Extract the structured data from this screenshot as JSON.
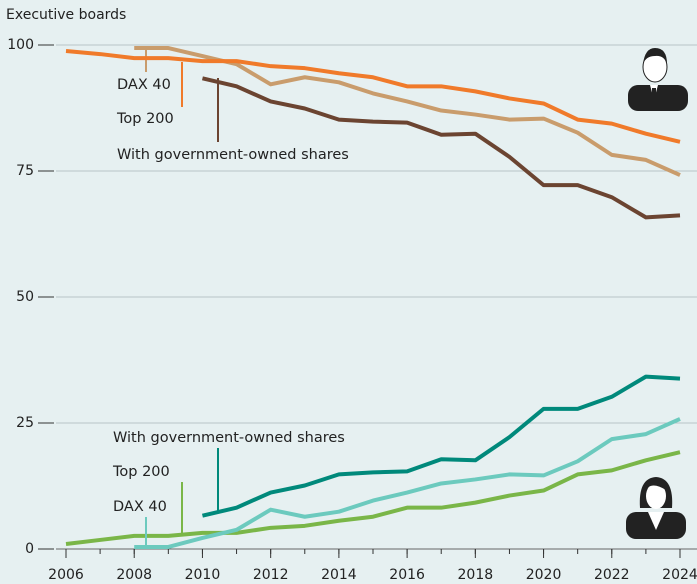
{
  "chart_data": {
    "type": "line",
    "y_label": "Executive boards",
    "x": [
      2006,
      2007,
      2008,
      2009,
      2010,
      2011,
      2012,
      2013,
      2014,
      2015,
      2016,
      2017,
      2018,
      2019,
      2020,
      2021,
      2022,
      2023,
      2024
    ],
    "xlim": [
      2006,
      2024
    ],
    "xticks": [
      2006,
      2008,
      2010,
      2012,
      2014,
      2016,
      2018,
      2020,
      2022,
      2024
    ],
    "ylim": [
      0,
      100
    ],
    "yticks": [
      0,
      25,
      50,
      75,
      100
    ],
    "grid": true,
    "series": [
      {
        "name": "DAX 40",
        "color": "#c99c6c",
        "values": [
          null,
          null,
          99.4,
          99.4,
          97.8,
          96.2,
          92.2,
          93.6,
          92.6,
          90.4,
          88.8,
          87,
          86.2,
          85.2,
          85.4,
          82.6,
          78.2,
          77.2,
          74.2
        ]
      },
      {
        "name": "Top 200",
        "color": "#f07a2a",
        "values": [
          98.8,
          98.2,
          97.4,
          97.4,
          96.8,
          96.8,
          95.8,
          95.4,
          94.4,
          93.6,
          91.8,
          91.8,
          90.8,
          89.4,
          88.4,
          85.2,
          84.4,
          82.4,
          80.8
        ]
      },
      {
        "name": "With government-owned shares",
        "color": "#6b4431",
        "values": [
          null,
          null,
          null,
          null,
          93.4,
          91.8,
          88.8,
          87.4,
          85.2,
          84.8,
          84.6,
          82.2,
          82.4,
          77.8,
          72.2,
          72.2,
          69.8,
          65.8,
          66.2
        ]
      },
      {
        "name": "With government-owned shares",
        "color": "#00897b",
        "values": [
          null,
          null,
          null,
          null,
          6.6,
          8.2,
          11.2,
          12.6,
          14.8,
          15.2,
          15.4,
          17.8,
          17.6,
          22.2,
          27.8,
          27.8,
          30.2,
          34.2,
          33.8
        ]
      },
      {
        "name": "Top 200",
        "color": "#7ab648",
        "values": [
          1,
          1.8,
          2.6,
          2.6,
          3.2,
          3.2,
          4.2,
          4.6,
          5.6,
          6.4,
          8.2,
          8.2,
          9.2,
          10.6,
          11.6,
          14.8,
          15.6,
          17.6,
          19.2
        ]
      },
      {
        "name": "DAX 40",
        "color": "#6ccabe",
        "values": [
          null,
          null,
          0.4,
          0.4,
          2.2,
          3.8,
          7.8,
          6.4,
          7.4,
          9.6,
          11.2,
          13,
          13.8,
          14.8,
          14.6,
          17.4,
          21.8,
          22.8,
          25.8
        ]
      }
    ]
  }
}
